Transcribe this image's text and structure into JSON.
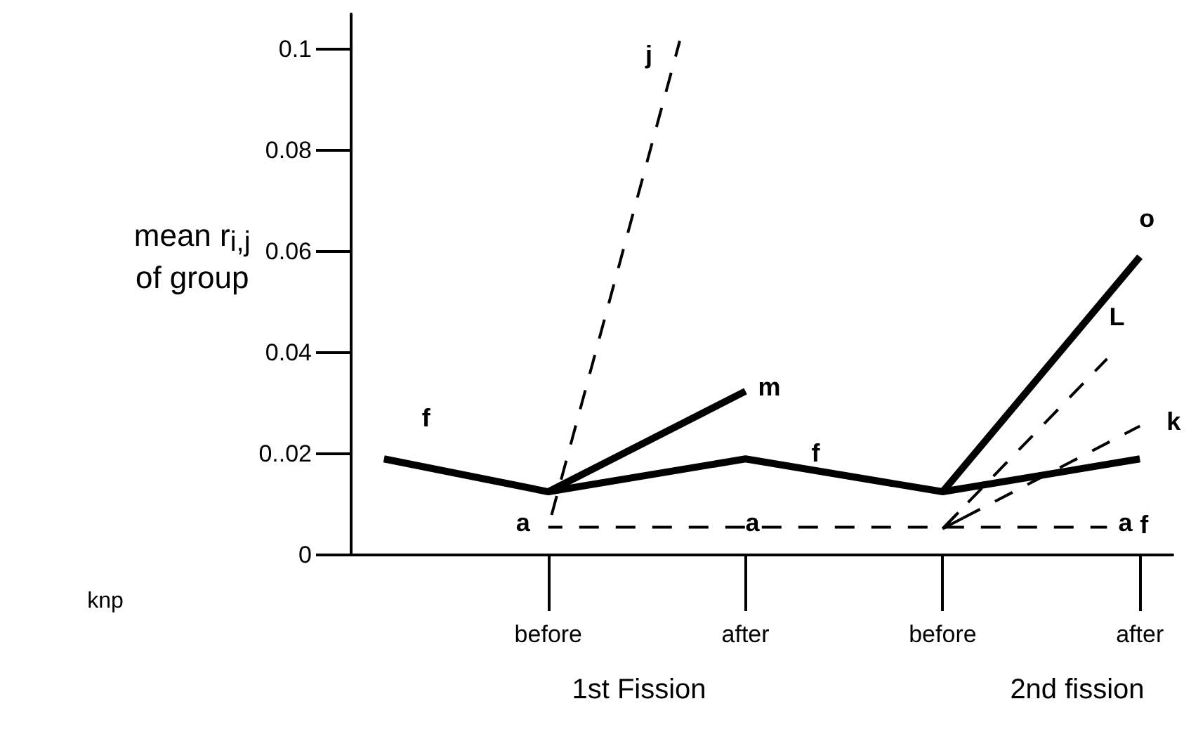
{
  "chart_data": {
    "type": "line",
    "ylabel": "mean r$_{i,j}$\nof group",
    "categories": [
      null,
      null,
      null,
      null,
      null,
      null,
      "before",
      null,
      null,
      null,
      null,
      null,
      "after",
      null,
      null,
      null,
      null,
      null,
      "before",
      null,
      null,
      null,
      null,
      null,
      "after",
      null
    ],
    "ylim": [
      0,
      0.107
    ],
    "yticks": [
      0,
      {
        "value": 0.02,
        "label": "0..02"
      },
      0.04,
      0.06,
      0.08,
      0.1
    ],
    "grid": false,
    "legend": false,
    "marker": "none",
    "series": [
      {
        "name": "f",
        "color": "#000000",
        "line_style": "solid",
        "values": [
          null,
          0.019,
          null,
          null,
          null,
          null,
          0.0125,
          null,
          null,
          null,
          null,
          null,
          0.019,
          null,
          null,
          null,
          null,
          null,
          0.0125,
          null,
          null,
          null,
          null,
          null,
          0.019,
          null
        ]
      },
      {
        "name": "m",
        "color": "#000000",
        "line_style": "solid",
        "values": [
          null,
          null,
          null,
          null,
          null,
          null,
          0.0125,
          null,
          null,
          null,
          null,
          null,
          0.0324,
          null,
          null,
          null,
          null,
          null,
          null,
          null,
          null,
          null,
          null,
          null,
          null,
          null
        ]
      },
      {
        "name": "j",
        "color": "#000000",
        "line_style": "dashed",
        "values": [
          null,
          null,
          null,
          null,
          null,
          null,
          0.0055,
          null,
          null,
          null,
          0.1017,
          null,
          null,
          null,
          null,
          null,
          null,
          null,
          null,
          null,
          null,
          null,
          null,
          null,
          null,
          null
        ]
      },
      {
        "name": "a",
        "color": "#000000",
        "line_style": "dashed",
        "values": [
          null,
          null,
          null,
          null,
          null,
          null,
          0.0055,
          null,
          null,
          null,
          null,
          null,
          0.0055,
          null,
          null,
          null,
          null,
          null,
          0.0055,
          null,
          null,
          null,
          null,
          0.0055,
          null,
          null
        ]
      },
      {
        "name": "o",
        "color": "#000000",
        "line_style": "solid",
        "values": [
          null,
          null,
          null,
          null,
          null,
          null,
          null,
          null,
          null,
          null,
          null,
          null,
          null,
          null,
          null,
          null,
          null,
          null,
          0.0125,
          null,
          null,
          null,
          null,
          null,
          0.059,
          null
        ]
      },
      {
        "name": "L",
        "color": "#000000",
        "line_style": "dashed",
        "values": [
          null,
          null,
          null,
          null,
          null,
          null,
          null,
          null,
          null,
          null,
          null,
          null,
          null,
          null,
          null,
          null,
          null,
          null,
          0.0052,
          null,
          null,
          null,
          null,
          0.0388,
          null,
          null
        ]
      },
      {
        "name": "k",
        "color": "#000000",
        "line_style": "dashed",
        "values": [
          null,
          null,
          null,
          null,
          null,
          null,
          null,
          null,
          null,
          null,
          null,
          null,
          null,
          null,
          null,
          null,
          null,
          null,
          0.0052,
          null,
          null,
          null,
          null,
          null,
          0.0255,
          null
        ]
      }
    ],
    "annotations": [
      "1st Fission",
      "2nd fission",
      "knp"
    ]
  }
}
